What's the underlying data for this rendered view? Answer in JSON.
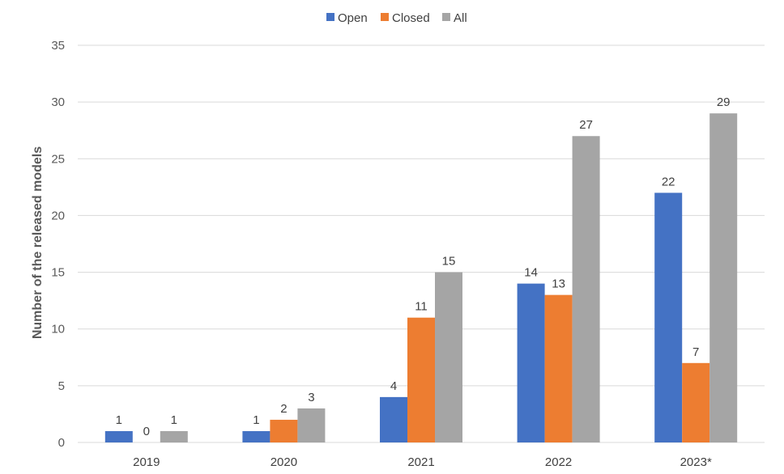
{
  "chart_data": {
    "type": "bar",
    "categories": [
      "2019",
      "2020",
      "2021",
      "2022",
      "2023*"
    ],
    "series": [
      {
        "name": "Open",
        "color": "#4472c4",
        "values": [
          1,
          1,
          4,
          14,
          22
        ]
      },
      {
        "name": "Closed",
        "color": "#ed7d31",
        "values": [
          0,
          2,
          11,
          13,
          7
        ]
      },
      {
        "name": "All",
        "color": "#a5a5a5",
        "values": [
          1,
          3,
          15,
          27,
          29
        ]
      }
    ],
    "xlabel": "",
    "ylabel": "Number of the released models",
    "ylim": [
      0,
      35
    ],
    "yticks": [
      0,
      5,
      10,
      15,
      20,
      25,
      30,
      35
    ],
    "grid": true,
    "legend_position": "top-center",
    "data_labels": true
  }
}
